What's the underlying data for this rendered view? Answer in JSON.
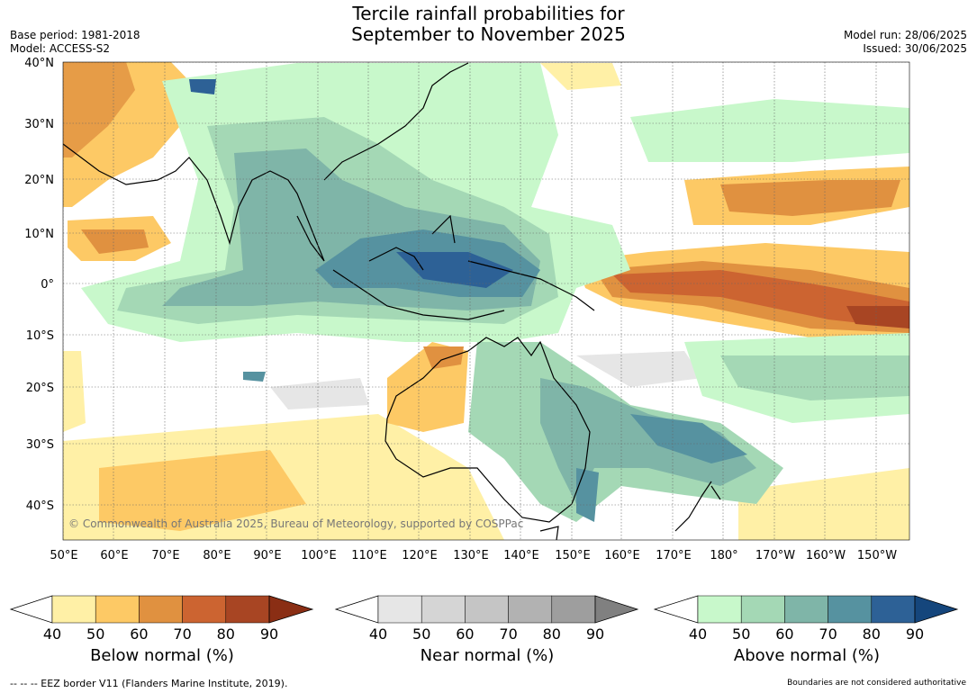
{
  "title_line1": "Tercile rainfall probabilities for",
  "title_line2": "September to November 2025",
  "meta_left": {
    "base_period": "Base period: 1981-2018",
    "model": "Model: ACCESS-S2"
  },
  "meta_right": {
    "model_run": "Model run: 28/06/2025",
    "issued": "Issued: 30/06/2025"
  },
  "copyright": "© Commonwealth of Australia 2025, Bureau of Meteorology, supported by COSPPac",
  "lat_labels": [
    "40°N",
    "30°N",
    "20°N",
    "10°N",
    "0°",
    "10°S",
    "20°S",
    "30°S",
    "40°S"
  ],
  "lon_labels": [
    "50°E",
    "60°E",
    "70°E",
    "80°E",
    "90°E",
    "100°E",
    "110°E",
    "120°E",
    "130°E",
    "140°E",
    "150°E",
    "160°E",
    "170°E",
    "180°",
    "170°W",
    "160°W",
    "150°W"
  ],
  "colorbars": [
    {
      "label": "Below normal (%)",
      "ticks": [
        "40",
        "50",
        "60",
        "70",
        "80",
        "90"
      ],
      "colors": [
        "#fff0a6",
        "#fdc965",
        "#e09140",
        "#cc6431",
        "#a84523",
        "#8a2e14"
      ]
    },
    {
      "label": "Near normal (%)",
      "ticks": [
        "40",
        "50",
        "60",
        "70",
        "80",
        "90"
      ],
      "colors": [
        "#e6e6e6",
        "#d5d5d5",
        "#c5c5c5",
        "#b2b2b2",
        "#9e9e9e",
        "#808080"
      ]
    },
    {
      "label": "Above normal (%)",
      "ticks": [
        "40",
        "50",
        "60",
        "70",
        "80",
        "90"
      ],
      "colors": [
        "#c8f8cb",
        "#a4d8b5",
        "#7fb5a8",
        "#5692a0",
        "#2d6196",
        "#15467c"
      ]
    }
  ],
  "footer_left": "--  --  -- EEZ border V11 (Flanders Marine Institute, 2019).",
  "footer_right": "Boundaries are not considered authoritative"
}
